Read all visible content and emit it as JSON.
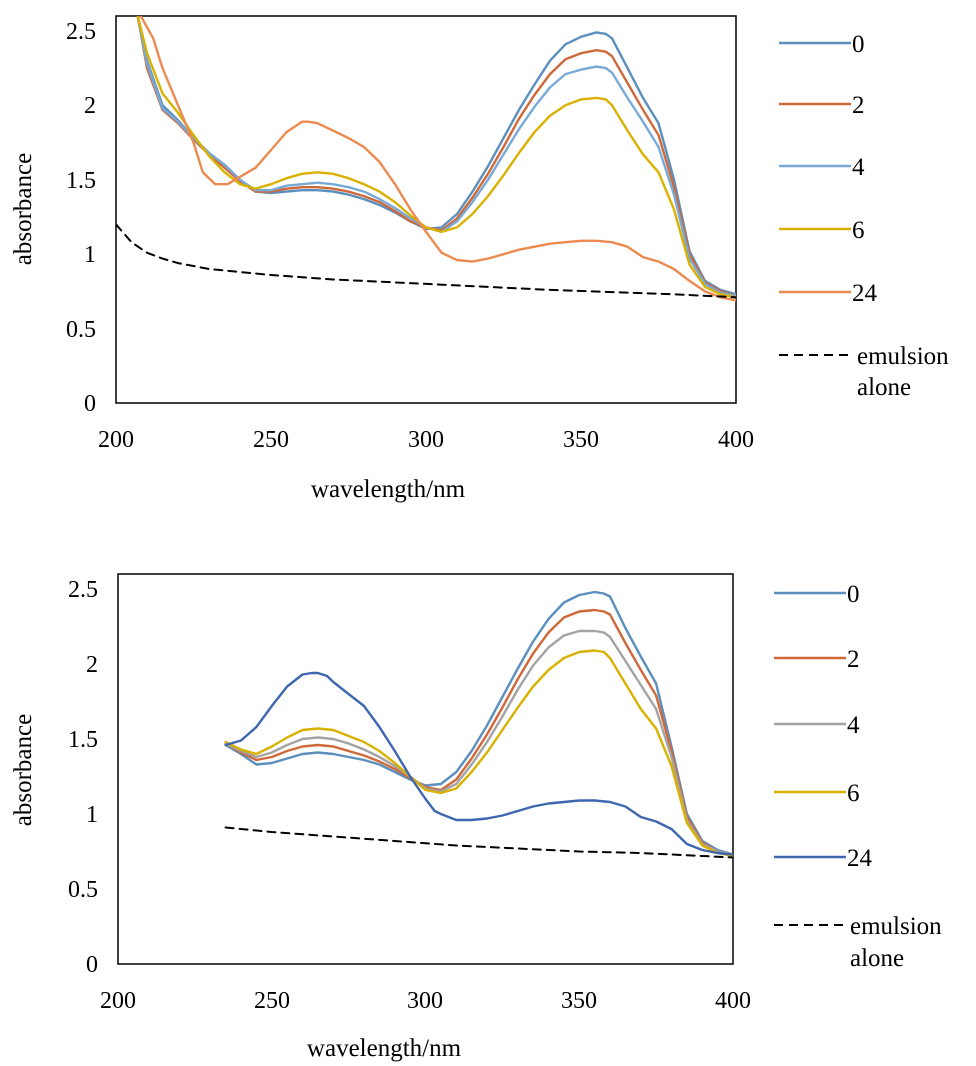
{
  "charts": [
    {
      "xlabel": "wavelength/nm",
      "ylabel": "absorbance",
      "xlim": [
        200,
        400
      ],
      "ylim": [
        0,
        2.6
      ],
      "xticks": [
        "200",
        "250",
        "300",
        "350",
        "400"
      ],
      "yticks": [
        "0",
        "0.5",
        "1",
        "1.5",
        "2",
        "2.5"
      ],
      "legend": [
        {
          "label": "0",
          "color": "#5b8fbd",
          "dashed": false
        },
        {
          "label": "2",
          "color": "#d0693a",
          "dashed": false
        },
        {
          "label": "4",
          "color": "#78aad8",
          "dashed": false
        },
        {
          "label": "6",
          "color": "#d9b100",
          "dashed": false
        },
        {
          "label": "24",
          "color": "#ec8a4f",
          "dashed": false
        },
        {
          "label": "emulsion",
          "label2": "alone",
          "color": "#000000",
          "dashed": true
        }
      ]
    },
    {
      "xlabel": "wavelength/nm",
      "ylabel": "absorbance",
      "xlim": [
        200,
        400
      ],
      "ylim": [
        0,
        2.6
      ],
      "xticks": [
        "200",
        "250",
        "300",
        "350",
        "400"
      ],
      "yticks": [
        "0",
        "0.5",
        "1",
        "1.5",
        "2",
        "2.5"
      ],
      "legend": [
        {
          "label": "0",
          "color": "#5b8fbd",
          "dashed": false
        },
        {
          "label": "2",
          "color": "#d0693a",
          "dashed": false
        },
        {
          "label": "4",
          "color": "#a3a3a3",
          "dashed": false
        },
        {
          "label": "6",
          "color": "#d9b100",
          "dashed": false
        },
        {
          "label": "24",
          "color": "#3f67b0",
          "dashed": false
        },
        {
          "label": "emulsion",
          "label2": "alone",
          "color": "#000000",
          "dashed": true
        }
      ]
    }
  ],
  "chart_data": [
    {
      "type": "line",
      "xlabel": "wavelength/nm",
      "ylabel": "absorbance",
      "xlim": [
        200,
        400
      ],
      "ylim": [
        0,
        2.6
      ],
      "grid": false,
      "legend_position": "right",
      "series": [
        {
          "name": "0",
          "color": "#5b8fbd",
          "dashed": false,
          "x": [
            207,
            210,
            215,
            220,
            225,
            230,
            235,
            240,
            245,
            250,
            255,
            260,
            265,
            270,
            275,
            280,
            285,
            290,
            295,
            300,
            305,
            310,
            315,
            320,
            325,
            330,
            335,
            340,
            345,
            350,
            355,
            358,
            360,
            365,
            370,
            375,
            380,
            385,
            390,
            395,
            400
          ],
          "y": [
            2.6,
            2.3,
            2.0,
            1.9,
            1.78,
            1.68,
            1.6,
            1.5,
            1.42,
            1.41,
            1.42,
            1.43,
            1.43,
            1.42,
            1.4,
            1.37,
            1.33,
            1.28,
            1.22,
            1.17,
            1.18,
            1.27,
            1.42,
            1.59,
            1.78,
            1.97,
            2.14,
            2.3,
            2.41,
            2.46,
            2.49,
            2.48,
            2.45,
            2.25,
            2.05,
            1.88,
            1.5,
            1.02,
            0.82,
            0.76,
            0.73
          ]
        },
        {
          "name": "2",
          "color": "#d0693a",
          "dashed": false,
          "x": [
            207,
            210,
            215,
            220,
            225,
            230,
            235,
            240,
            245,
            250,
            255,
            260,
            265,
            270,
            275,
            280,
            285,
            290,
            295,
            300,
            305,
            310,
            315,
            320,
            325,
            330,
            335,
            340,
            345,
            350,
            355,
            358,
            360,
            365,
            370,
            375,
            380,
            385,
            390,
            395,
            400
          ],
          "y": [
            2.6,
            2.25,
            1.97,
            1.88,
            1.77,
            1.67,
            1.58,
            1.49,
            1.42,
            1.42,
            1.44,
            1.45,
            1.45,
            1.44,
            1.42,
            1.39,
            1.35,
            1.29,
            1.22,
            1.18,
            1.16,
            1.24,
            1.38,
            1.54,
            1.72,
            1.91,
            2.07,
            2.21,
            2.31,
            2.35,
            2.37,
            2.36,
            2.33,
            2.15,
            1.97,
            1.8,
            1.45,
            1.0,
            0.81,
            0.75,
            0.72
          ]
        },
        {
          "name": "4",
          "color": "#78aad8",
          "dashed": false,
          "x": [
            207,
            210,
            215,
            220,
            225,
            230,
            235,
            240,
            245,
            250,
            255,
            260,
            265,
            270,
            275,
            280,
            285,
            290,
            295,
            300,
            305,
            310,
            315,
            320,
            325,
            330,
            335,
            340,
            345,
            350,
            355,
            358,
            360,
            365,
            370,
            375,
            380,
            385,
            390,
            395,
            400
          ],
          "y": [
            2.6,
            2.28,
            1.98,
            1.89,
            1.78,
            1.68,
            1.6,
            1.5,
            1.43,
            1.43,
            1.46,
            1.47,
            1.48,
            1.47,
            1.45,
            1.42,
            1.37,
            1.31,
            1.24,
            1.18,
            1.15,
            1.22,
            1.35,
            1.5,
            1.67,
            1.84,
            1.99,
            2.12,
            2.21,
            2.24,
            2.26,
            2.25,
            2.22,
            2.05,
            1.89,
            1.72,
            1.4,
            0.97,
            0.8,
            0.74,
            0.72
          ]
        },
        {
          "name": "6",
          "color": "#d9b100",
          "dashed": false,
          "x": [
            207,
            210,
            215,
            220,
            225,
            230,
            235,
            240,
            245,
            250,
            255,
            260,
            265,
            270,
            275,
            280,
            285,
            290,
            295,
            300,
            305,
            310,
            315,
            320,
            325,
            330,
            335,
            340,
            345,
            350,
            355,
            358,
            360,
            365,
            370,
            375,
            380,
            385,
            390,
            395,
            400
          ],
          "y": [
            2.6,
            2.35,
            2.08,
            1.95,
            1.8,
            1.66,
            1.55,
            1.47,
            1.44,
            1.47,
            1.51,
            1.54,
            1.55,
            1.54,
            1.51,
            1.47,
            1.42,
            1.35,
            1.26,
            1.18,
            1.15,
            1.18,
            1.27,
            1.39,
            1.53,
            1.68,
            1.82,
            1.93,
            2.0,
            2.04,
            2.05,
            2.04,
            2.0,
            1.83,
            1.67,
            1.55,
            1.3,
            0.93,
            0.78,
            0.73,
            0.71
          ]
        },
        {
          "name": "24",
          "color": "#ec8a4f",
          "dashed": false,
          "x": [
            208,
            212,
            215,
            220,
            225,
            228,
            232,
            236,
            240,
            245,
            250,
            255,
            260,
            262,
            265,
            270,
            275,
            280,
            285,
            290,
            295,
            300,
            305,
            310,
            315,
            320,
            325,
            330,
            335,
            340,
            345,
            350,
            355,
            360,
            365,
            370,
            375,
            380,
            385,
            390,
            395,
            400
          ],
          "y": [
            2.6,
            2.45,
            2.25,
            2.0,
            1.75,
            1.55,
            1.47,
            1.47,
            1.52,
            1.58,
            1.7,
            1.82,
            1.89,
            1.89,
            1.88,
            1.83,
            1.78,
            1.72,
            1.62,
            1.47,
            1.3,
            1.15,
            1.01,
            0.96,
            0.95,
            0.97,
            1.0,
            1.03,
            1.05,
            1.07,
            1.08,
            1.09,
            1.09,
            1.08,
            1.05,
            0.98,
            0.95,
            0.9,
            0.82,
            0.75,
            0.71,
            0.69
          ]
        },
        {
          "name": "emulsion alone",
          "color": "#000000",
          "dashed": true,
          "x": [
            200,
            205,
            210,
            215,
            220,
            230,
            240,
            250,
            260,
            270,
            280,
            290,
            300,
            320,
            340,
            360,
            380,
            400
          ],
          "y": [
            1.2,
            1.08,
            1.01,
            0.97,
            0.94,
            0.9,
            0.88,
            0.86,
            0.845,
            0.83,
            0.82,
            0.81,
            0.8,
            0.78,
            0.76,
            0.745,
            0.73,
            0.71
          ]
        }
      ]
    },
    {
      "type": "line",
      "xlabel": "wavelength/nm",
      "ylabel": "absorbance",
      "xlim": [
        200,
        400
      ],
      "ylim": [
        0,
        2.6
      ],
      "grid": false,
      "legend_position": "right",
      "series": [
        {
          "name": "0",
          "color": "#5b8fbd",
          "dashed": false,
          "x": [
            235,
            240,
            245,
            250,
            255,
            260,
            265,
            270,
            275,
            280,
            285,
            290,
            295,
            300,
            305,
            310,
            315,
            320,
            325,
            330,
            335,
            340,
            345,
            350,
            355,
            358,
            360,
            365,
            370,
            375,
            380,
            385,
            390,
            395,
            400
          ],
          "y": [
            1.46,
            1.4,
            1.33,
            1.34,
            1.37,
            1.4,
            1.41,
            1.4,
            1.38,
            1.36,
            1.33,
            1.28,
            1.23,
            1.19,
            1.2,
            1.28,
            1.42,
            1.59,
            1.78,
            1.97,
            2.15,
            2.3,
            2.41,
            2.46,
            2.48,
            2.47,
            2.45,
            2.24,
            2.05,
            1.87,
            1.45,
            1.0,
            0.82,
            0.76,
            0.73
          ]
        },
        {
          "name": "2",
          "color": "#d0693a",
          "dashed": false,
          "x": [
            235,
            240,
            245,
            250,
            255,
            260,
            265,
            270,
            275,
            280,
            285,
            290,
            295,
            300,
            305,
            310,
            315,
            320,
            325,
            330,
            335,
            340,
            345,
            350,
            355,
            358,
            360,
            365,
            370,
            375,
            380,
            385,
            390,
            395,
            400
          ],
          "y": [
            1.47,
            1.41,
            1.36,
            1.38,
            1.42,
            1.45,
            1.46,
            1.45,
            1.42,
            1.39,
            1.35,
            1.3,
            1.24,
            1.18,
            1.16,
            1.23,
            1.37,
            1.53,
            1.71,
            1.9,
            2.07,
            2.21,
            2.31,
            2.35,
            2.36,
            2.35,
            2.33,
            2.14,
            1.96,
            1.79,
            1.42,
            0.98,
            0.81,
            0.75,
            0.73
          ]
        },
        {
          "name": "4",
          "color": "#a3a3a3",
          "dashed": false,
          "x": [
            235,
            240,
            245,
            250,
            255,
            260,
            265,
            270,
            275,
            280,
            285,
            290,
            295,
            300,
            305,
            310,
            315,
            320,
            325,
            330,
            335,
            340,
            345,
            350,
            355,
            358,
            360,
            365,
            370,
            375,
            380,
            385,
            390,
            395,
            400
          ],
          "y": [
            1.47,
            1.42,
            1.38,
            1.41,
            1.46,
            1.5,
            1.51,
            1.5,
            1.47,
            1.43,
            1.38,
            1.32,
            1.25,
            1.17,
            1.15,
            1.2,
            1.33,
            1.48,
            1.65,
            1.83,
            1.99,
            2.11,
            2.19,
            2.22,
            2.22,
            2.21,
            2.18,
            2.02,
            1.86,
            1.7,
            1.38,
            0.96,
            0.8,
            0.75,
            0.73
          ]
        },
        {
          "name": "6",
          "color": "#d9b100",
          "dashed": false,
          "x": [
            235,
            240,
            245,
            250,
            255,
            260,
            265,
            270,
            275,
            280,
            285,
            290,
            295,
            300,
            305,
            310,
            315,
            320,
            325,
            330,
            335,
            340,
            345,
            350,
            355,
            358,
            360,
            365,
            370,
            375,
            380,
            385,
            390,
            395,
            400
          ],
          "y": [
            1.48,
            1.43,
            1.4,
            1.45,
            1.51,
            1.56,
            1.57,
            1.56,
            1.52,
            1.48,
            1.42,
            1.34,
            1.25,
            1.16,
            1.14,
            1.17,
            1.28,
            1.41,
            1.56,
            1.71,
            1.85,
            1.96,
            2.04,
            2.08,
            2.09,
            2.08,
            2.04,
            1.87,
            1.7,
            1.57,
            1.32,
            0.94,
            0.79,
            0.74,
            0.72
          ]
        },
        {
          "name": "24",
          "color": "#3f67b0",
          "dashed": false,
          "x": [
            235,
            240,
            245,
            250,
            255,
            260,
            263,
            265,
            268,
            270,
            275,
            280,
            285,
            290,
            295,
            300,
            303,
            305,
            310,
            315,
            320,
            325,
            330,
            335,
            340,
            345,
            350,
            355,
            360,
            365,
            370,
            375,
            380,
            385,
            390,
            395,
            400
          ],
          "y": [
            1.46,
            1.49,
            1.58,
            1.72,
            1.85,
            1.93,
            1.94,
            1.94,
            1.92,
            1.88,
            1.8,
            1.72,
            1.58,
            1.42,
            1.25,
            1.1,
            1.02,
            1.0,
            0.96,
            0.96,
            0.97,
            0.99,
            1.02,
            1.05,
            1.07,
            1.08,
            1.09,
            1.09,
            1.08,
            1.05,
            0.98,
            0.95,
            0.9,
            0.8,
            0.76,
            0.74,
            0.73
          ]
        },
        {
          "name": "emulsion alone",
          "color": "#000000",
          "dashed": true,
          "x": [
            235,
            250,
            270,
            290,
            310,
            330,
            350,
            370,
            390,
            400
          ],
          "y": [
            0.91,
            0.88,
            0.85,
            0.82,
            0.79,
            0.77,
            0.75,
            0.74,
            0.72,
            0.71
          ]
        }
      ]
    }
  ]
}
